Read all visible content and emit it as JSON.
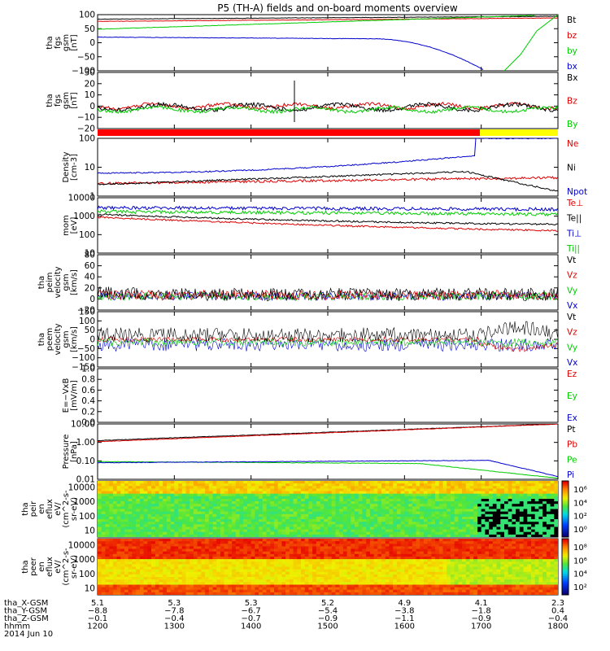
{
  "title": "P5 (TH-A) fields and on-board moments overview",
  "chart_data": {
    "type": "line",
    "x_range": [
      "1200",
      "1800"
    ],
    "xtick_labels": [
      "1200",
      "1300",
      "1400",
      "1500",
      "1600",
      "1700",
      "1800"
    ],
    "panels": [
      {
        "ylabel": [
          "tha",
          "fgs",
          "gsm",
          "[nT]"
        ],
        "ylim": [
          -100,
          100
        ],
        "yticks": [
          "100",
          "50",
          "0",
          "−50",
          "−100"
        ],
        "series": [
          {
            "name": "Bt",
            "color": "#000000"
          },
          {
            "name": "bz",
            "color": "#dd0000"
          },
          {
            "name": "by",
            "color": "#00cc00"
          },
          {
            "name": "bx",
            "color": "#0000cc"
          }
        ]
      },
      {
        "ylabel": [
          "tha",
          "fgs",
          "gsm",
          "[nT]"
        ],
        "ylim": [
          -25,
          30
        ],
        "yticks": [
          "30",
          "20",
          "10",
          "0",
          "−10",
          "−20"
        ],
        "series": [
          {
            "name": "Bx",
            "color": "#000000"
          },
          {
            "name": "Bz",
            "color": "#dd0000"
          },
          {
            "name": "By",
            "color": "#00cc00"
          }
        ]
      },
      {
        "ylabel": [
          "Density",
          "[cm-3]"
        ],
        "scale": "log",
        "yticks": [
          "100",
          "10",
          "1"
        ],
        "series": [
          {
            "name": "Ne",
            "color": "#dd0000"
          },
          {
            "name": "Ni",
            "color": "#000000"
          },
          {
            "name": "Npot",
            "color": "#0000cc"
          }
        ]
      },
      {
        "ylabel": [
          "mom",
          "[eV]"
        ],
        "scale": "log",
        "yticks": [
          "10000",
          "1000",
          "100",
          "10"
        ],
        "series": [
          {
            "name": "Te⊥",
            "color": "#dd0000"
          },
          {
            "name": "Te||",
            "color": "#000000"
          },
          {
            "name": "Ti⊥",
            "color": "#0000cc"
          },
          {
            "name": "Ti||",
            "color": "#00cc00"
          }
        ]
      },
      {
        "ylabel": [
          "tha",
          "peim",
          "velocity",
          "gsm",
          "[km/s]"
        ],
        "ylim": [
          -20,
          80
        ],
        "yticks": [
          "80",
          "60",
          "40",
          "20",
          "0",
          "−20"
        ],
        "series": [
          {
            "name": "Vt",
            "color": "#000000"
          },
          {
            "name": "Vz",
            "color": "#dd0000"
          },
          {
            "name": "Vy",
            "color": "#00cc00"
          },
          {
            "name": "Vx",
            "color": "#0000cc"
          }
        ]
      },
      {
        "ylabel": [
          "tha",
          "peem",
          "velocity",
          "gsm",
          "[km/s]"
        ],
        "ylim": [
          -150,
          150
        ],
        "yticks": [
          "150",
          "100",
          "50",
          "0",
          "−50",
          "−100",
          "−150"
        ],
        "series": [
          {
            "name": "Vt",
            "color": "#000000"
          },
          {
            "name": "Vz",
            "color": "#dd0000"
          },
          {
            "name": "Vy",
            "color": "#00cc00"
          },
          {
            "name": "Vx",
            "color": "#0000cc"
          }
        ]
      },
      {
        "ylabel": [
          "E=−VxB",
          "[mV/m]"
        ],
        "ylim": [
          0,
          1
        ],
        "yticks": [
          "1.0",
          "0.8",
          "0.6",
          "0.4",
          "0.2",
          "0.0"
        ],
        "series": [
          {
            "name": "Ez",
            "color": "#dd0000"
          },
          {
            "name": "Ey",
            "color": "#00cc00"
          },
          {
            "name": "Ex",
            "color": "#0000cc"
          }
        ]
      },
      {
        "ylabel": [
          "Pressure",
          "[nPa]"
        ],
        "scale": "log",
        "yticks": [
          "10.00",
          "1.00",
          "0.10",
          "0.01"
        ],
        "series": [
          {
            "name": "Pt",
            "color": "#000000"
          },
          {
            "name": "Pb",
            "color": "#dd0000"
          },
          {
            "name": "Pe",
            "color": "#00cc00"
          },
          {
            "name": "Pi",
            "color": "#0000cc"
          }
        ]
      },
      {
        "ylabel": [
          "tha",
          "peir",
          "en",
          "eflux",
          "eV/",
          "(cm^2-s-",
          "sr-eV)"
        ],
        "type": "heatmap",
        "yticks": [
          "10000",
          "1000",
          "100",
          "10"
        ],
        "colorbar_ticks": [
          "10⁶",
          "10⁴",
          "10²",
          "10⁰"
        ]
      },
      {
        "ylabel": [
          "tha",
          "peer",
          "en",
          "eflux",
          "eV/",
          "(cm^2-s-",
          "sr-eV)"
        ],
        "type": "heatmap",
        "yticks": [
          "10000",
          "1000",
          "100",
          "10"
        ],
        "colorbar_ticks": [
          "10⁸",
          "10⁶",
          "10⁴",
          "10²"
        ]
      }
    ],
    "ephemeris": {
      "rows": [
        {
          "label": "tha_X-GSM",
          "values": [
            "5.1",
            "5.3",
            "5.3",
            "5.2",
            "4.9",
            "4.1",
            "2.3"
          ]
        },
        {
          "label": "tha_Y-GSM",
          "values": [
            "−8.8",
            "−7.8",
            "−6.7",
            "−5.4",
            "−3.8",
            "−1.8",
            "0.4"
          ]
        },
        {
          "label": "tha_Z-GSM",
          "values": [
            "−0.1",
            "−0.4",
            "−0.7",
            "−0.9",
            "−1.1",
            "−0.9",
            "−0.4"
          ]
        },
        {
          "label": "hhmm",
          "values": [
            "1200",
            "1300",
            "1400",
            "1500",
            "1600",
            "1700",
            "1800"
          ]
        }
      ],
      "date": "2014 Jun 10"
    }
  }
}
